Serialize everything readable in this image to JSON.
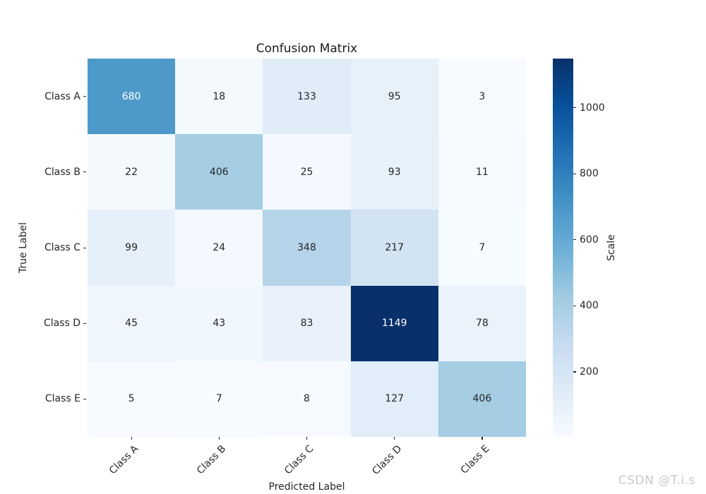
{
  "title": "Confusion Matrix",
  "watermark": "CSDN @T.i.s",
  "chart_data": {
    "type": "heatmap",
    "title": "Confusion Matrix",
    "xlabel": "Predicted Label",
    "ylabel": "True Label",
    "x_categories": [
      "Class A",
      "Class B",
      "Class C",
      "Class D",
      "Class E"
    ],
    "y_categories": [
      "Class A",
      "Class B",
      "Class C",
      "Class D",
      "Class E"
    ],
    "values": [
      [
        680,
        18,
        133,
        95,
        3
      ],
      [
        22,
        406,
        25,
        93,
        11
      ],
      [
        99,
        24,
        348,
        217,
        7
      ],
      [
        45,
        43,
        83,
        1149,
        78
      ],
      [
        5,
        7,
        8,
        127,
        406
      ]
    ],
    "colormap": "Blues",
    "vmin": 3,
    "vmax": 1149,
    "colorbar": {
      "label": "Scale",
      "ticks": [
        200,
        400,
        600,
        800,
        1000
      ]
    },
    "legend_position": "right-colorbar",
    "grid": false
  },
  "colors": {
    "background": "#ffffff",
    "annotation_dark": "#262626",
    "annotation_light": "#ffffff",
    "tick_color": "#262626",
    "watermark": "#c9c9cd",
    "blues_anchors": [
      "#f7fbff",
      "#deebf7",
      "#c6dbef",
      "#9ecae1",
      "#6baed6",
      "#4292c6",
      "#2171b5",
      "#08519c",
      "#08306b"
    ]
  }
}
